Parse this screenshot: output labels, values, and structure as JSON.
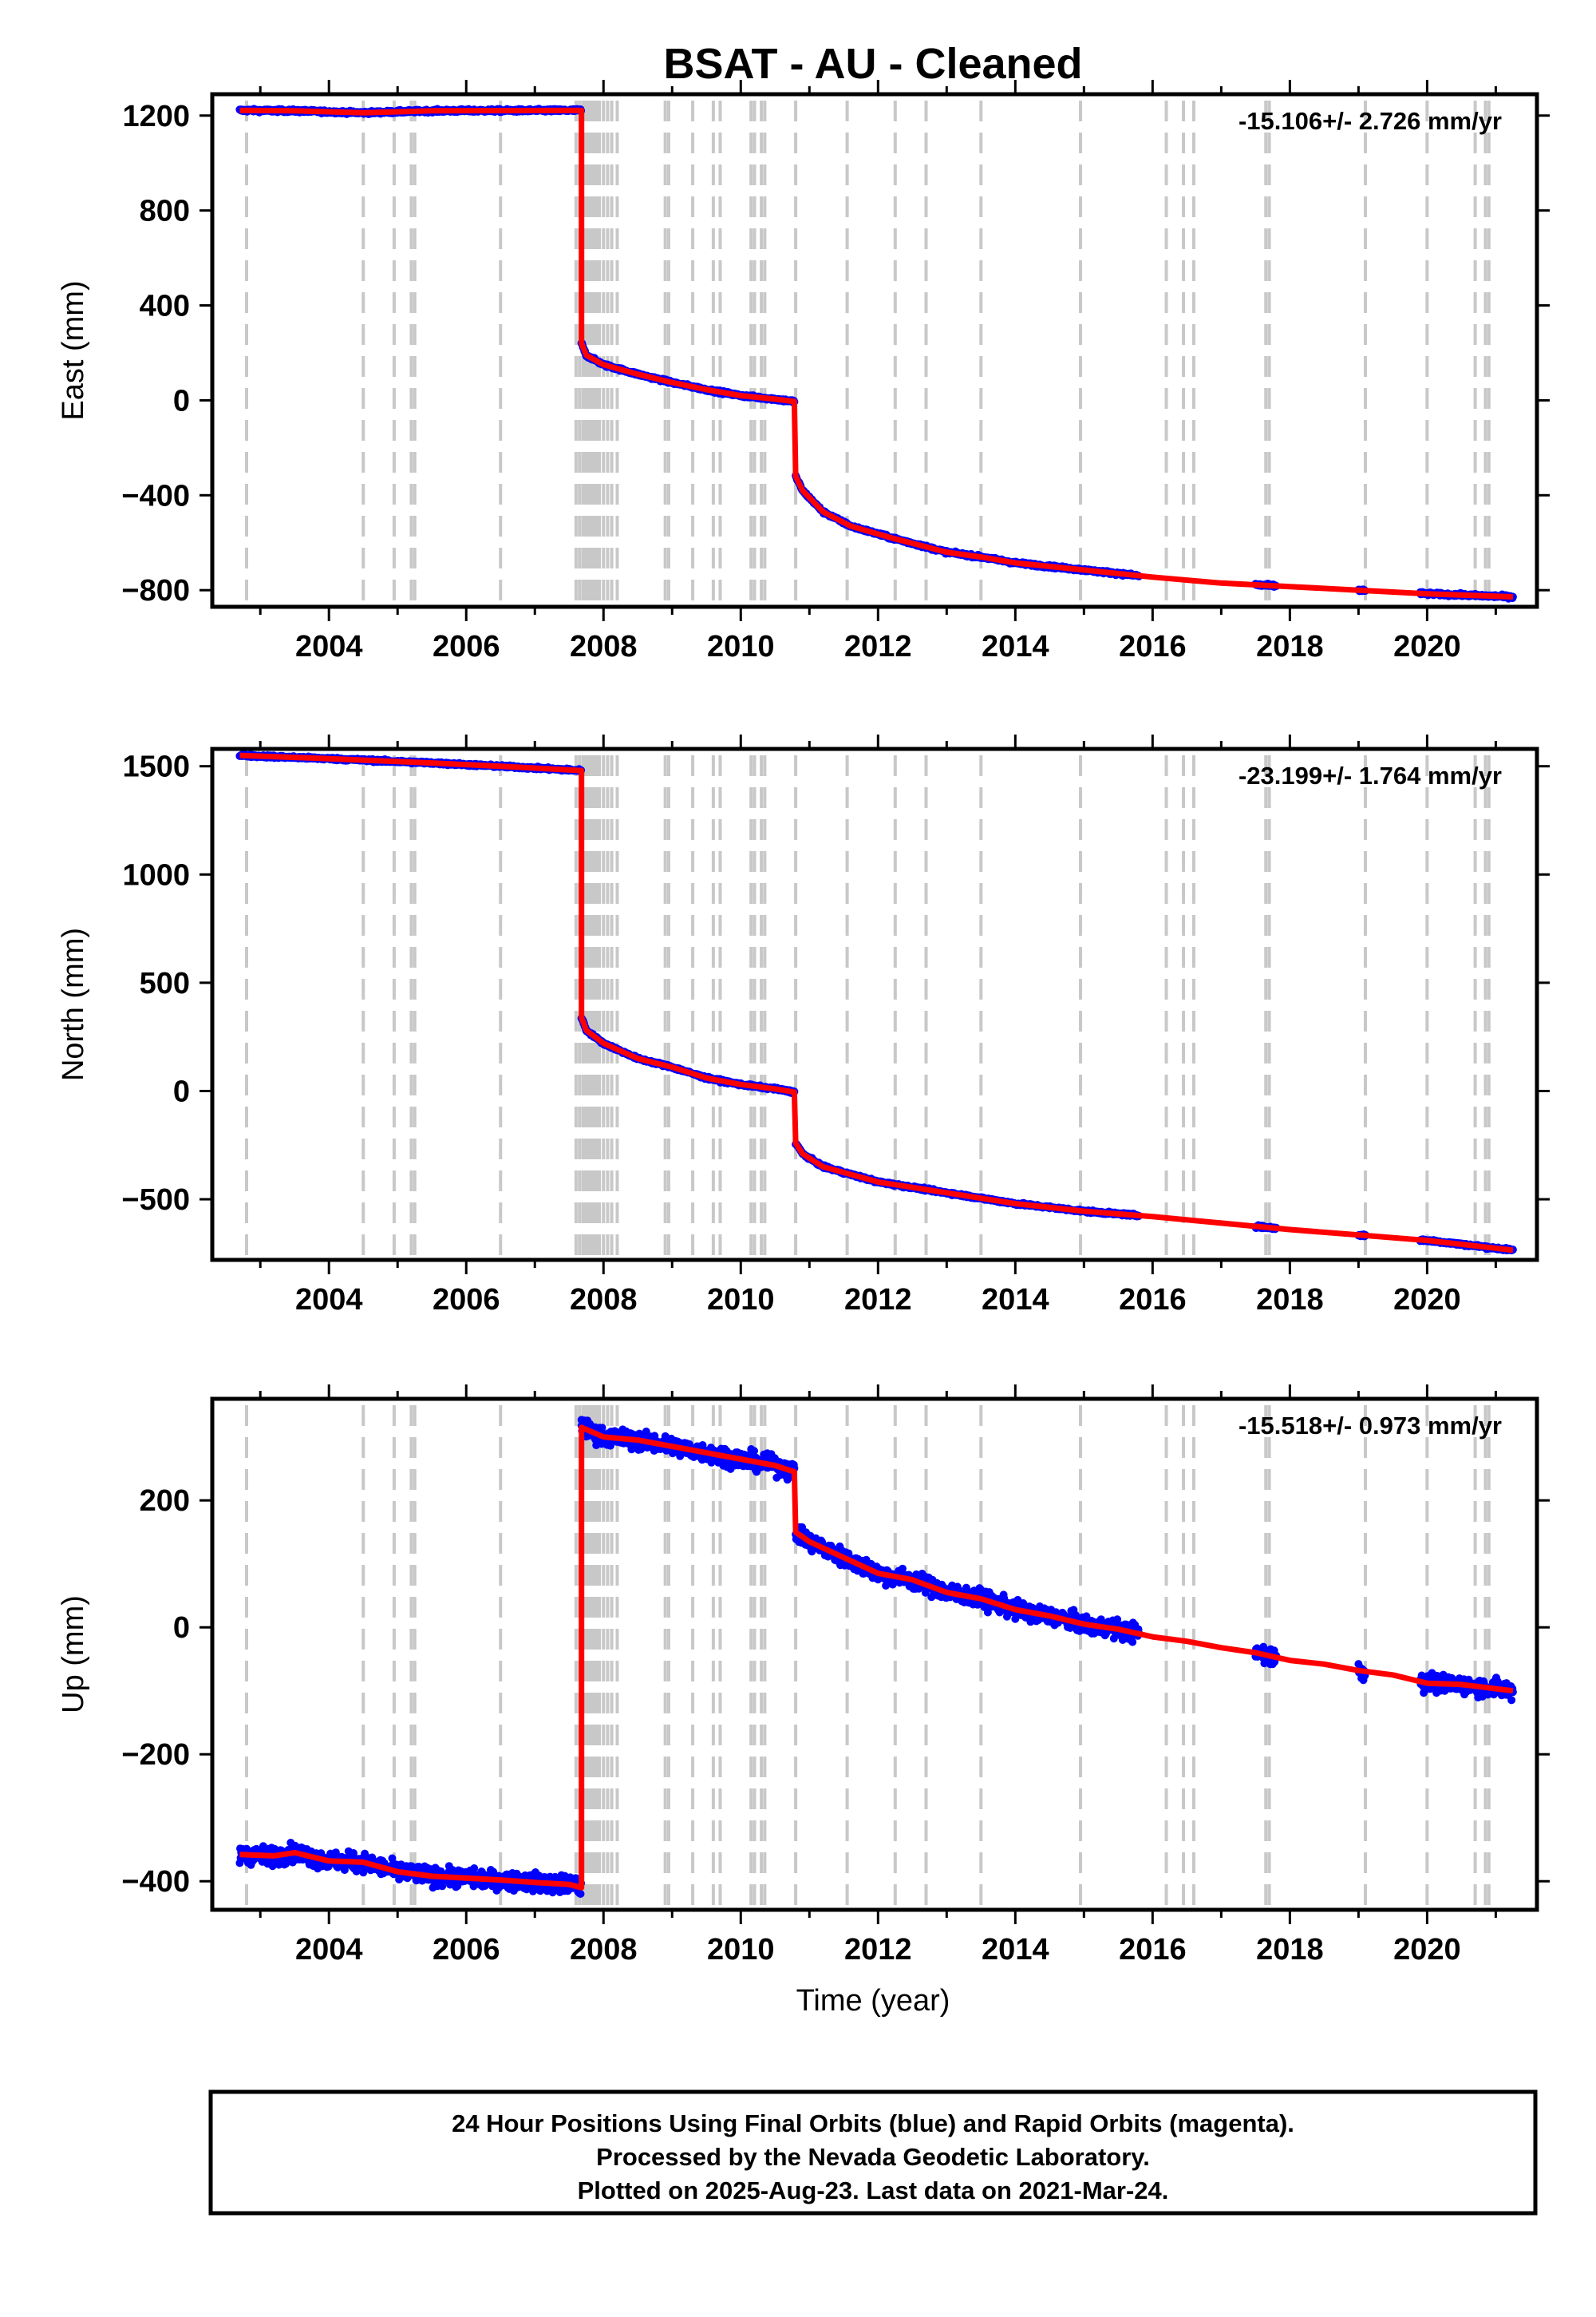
{
  "chart_data": {
    "title": "BSAT  - AU - Cleaned",
    "xlabel": "Time (year)",
    "xlim": [
      2002.3,
      2021.6
    ],
    "xticks": [
      2004,
      2006,
      2008,
      2010,
      2012,
      2014,
      2016,
      2018,
      2020
    ],
    "colors": {
      "data": "#0000ff",
      "model": "#ff0000",
      "event": "#c8c8c8"
    },
    "event_lines": [
      2002.8,
      2004.5,
      2004.95,
      2005.2,
      2005.25,
      2006.5,
      2007.6,
      2007.65,
      2007.7,
      2007.72,
      2007.75,
      2007.78,
      2007.8,
      2007.83,
      2007.86,
      2007.9,
      2007.94,
      2008.0,
      2008.06,
      2008.12,
      2008.2,
      2008.9,
      2008.95,
      2009.3,
      2009.6,
      2009.7,
      2010.15,
      2010.2,
      2010.3,
      2010.35,
      2010.8,
      2011.55,
      2012.25,
      2012.7,
      2013.5,
      2014.95,
      2016.2,
      2016.45,
      2016.6,
      2017.65,
      2017.7,
      2019.1,
      2020.0,
      2020.7,
      2020.85,
      2020.9
    ],
    "panels": [
      {
        "type": "scatter",
        "ylabel": "East (mm)",
        "ylim": [
          -870,
          1290
        ],
        "yticks": [
          -800,
          -400,
          0,
          400,
          800,
          1200
        ],
        "rate_text": "-15.106+/- 2.726 mm/yr",
        "noise": 6,
        "model": [
          [
            2002.7,
            1222
          ],
          [
            2003.5,
            1220
          ],
          [
            2004.5,
            1212
          ],
          [
            2005.5,
            1220
          ],
          [
            2006.5,
            1221
          ],
          [
            2007.68,
            1222
          ],
          [
            2007.68,
            240
          ],
          [
            2007.75,
            190
          ],
          [
            2008.0,
            150
          ],
          [
            2008.5,
            110
          ],
          [
            2009.0,
            75
          ],
          [
            2009.5,
            45
          ],
          [
            2010.0,
            20
          ],
          [
            2010.5,
            5
          ],
          [
            2010.78,
            -5
          ],
          [
            2010.8,
            -320
          ],
          [
            2010.9,
            -380
          ],
          [
            2011.2,
            -470
          ],
          [
            2011.6,
            -530
          ],
          [
            2012.2,
            -580
          ],
          [
            2013.0,
            -640
          ],
          [
            2013.5,
            -660
          ],
          [
            2014.0,
            -685
          ],
          [
            2015.0,
            -715
          ],
          [
            2016.0,
            -745
          ],
          [
            2017.0,
            -770
          ],
          [
            2018.0,
            -785
          ],
          [
            2019.0,
            -800
          ],
          [
            2020.0,
            -815
          ],
          [
            2021.25,
            -828
          ]
        ],
        "data_ranges": [
          [
            2002.7,
            2007.68
          ],
          [
            2007.68,
            2010.78
          ],
          [
            2010.8,
            2015.8
          ],
          [
            2017.5,
            2017.8
          ],
          [
            2019.0,
            2019.1
          ],
          [
            2019.9,
            2021.25
          ]
        ]
      },
      {
        "type": "scatter",
        "ylabel": "North (mm)",
        "ylim": [
          -780,
          1580
        ],
        "yticks": [
          -500,
          0,
          500,
          1000,
          1500
        ],
        "rate_text": "-23.199+/- 1.764 mm/yr",
        "noise": 6,
        "model": [
          [
            2002.7,
            1550
          ],
          [
            2004.0,
            1535
          ],
          [
            2005.5,
            1515
          ],
          [
            2006.5,
            1500
          ],
          [
            2007.68,
            1480
          ],
          [
            2007.68,
            340
          ],
          [
            2007.75,
            280
          ],
          [
            2008.0,
            220
          ],
          [
            2008.5,
            150
          ],
          [
            2009.0,
            110
          ],
          [
            2009.5,
            60
          ],
          [
            2010.0,
            30
          ],
          [
            2010.5,
            10
          ],
          [
            2010.78,
            -5
          ],
          [
            2010.8,
            -240
          ],
          [
            2010.9,
            -290
          ],
          [
            2011.2,
            -350
          ],
          [
            2012.0,
            -420
          ],
          [
            2013.0,
            -470
          ],
          [
            2014.0,
            -520
          ],
          [
            2015.0,
            -555
          ],
          [
            2016.0,
            -580
          ],
          [
            2017.0,
            -610
          ],
          [
            2018.0,
            -640
          ],
          [
            2019.0,
            -665
          ],
          [
            2020.0,
            -690
          ],
          [
            2021.25,
            -735
          ]
        ],
        "data_ranges": [
          [
            2002.7,
            2007.68
          ],
          [
            2007.68,
            2010.78
          ],
          [
            2010.8,
            2015.8
          ],
          [
            2017.5,
            2017.8
          ],
          [
            2019.0,
            2019.1
          ],
          [
            2019.9,
            2021.25
          ]
        ]
      },
      {
        "type": "scatter",
        "ylabel": "Up (mm)",
        "ylim": [
          -445,
          360
        ],
        "yticks": [
          -400,
          -200,
          0,
          200
        ],
        "rate_text": "-15.518+/- 0.973 mm/yr",
        "noise": 14,
        "model": [
          [
            2002.7,
            -358
          ],
          [
            2003.2,
            -360
          ],
          [
            2003.5,
            -355
          ],
          [
            2004.0,
            -368
          ],
          [
            2004.5,
            -370
          ],
          [
            2005.0,
            -385
          ],
          [
            2005.5,
            -392
          ],
          [
            2006.0,
            -395
          ],
          [
            2006.5,
            -398
          ],
          [
            2007.0,
            -402
          ],
          [
            2007.5,
            -405
          ],
          [
            2007.68,
            -410
          ],
          [
            2007.68,
            315
          ],
          [
            2008.0,
            300
          ],
          [
            2008.5,
            295
          ],
          [
            2009.0,
            285
          ],
          [
            2009.5,
            275
          ],
          [
            2010.0,
            265
          ],
          [
            2010.5,
            255
          ],
          [
            2010.78,
            245
          ],
          [
            2010.8,
            150
          ],
          [
            2011.0,
            135
          ],
          [
            2011.5,
            110
          ],
          [
            2012.0,
            85
          ],
          [
            2012.5,
            75
          ],
          [
            2013.0,
            55
          ],
          [
            2013.5,
            45
          ],
          [
            2014.0,
            28
          ],
          [
            2014.5,
            18
          ],
          [
            2015.0,
            5
          ],
          [
            2015.5,
            -3
          ],
          [
            2016.0,
            -15
          ],
          [
            2016.5,
            -22
          ],
          [
            2017.0,
            -32
          ],
          [
            2017.5,
            -40
          ],
          [
            2018.0,
            -52
          ],
          [
            2018.5,
            -58
          ],
          [
            2019.0,
            -68
          ],
          [
            2019.5,
            -75
          ],
          [
            2020.0,
            -88
          ],
          [
            2020.5,
            -90
          ],
          [
            2021.25,
            -100
          ]
        ],
        "data_ranges": [
          [
            2002.7,
            2007.68
          ],
          [
            2007.68,
            2010.78
          ],
          [
            2010.8,
            2015.8
          ],
          [
            2017.5,
            2017.8
          ],
          [
            2019.0,
            2019.1
          ],
          [
            2019.9,
            2021.25
          ]
        ]
      }
    ]
  },
  "footer": {
    "line1": "24 Hour Positions Using Final Orbits (blue) and Rapid Orbits (magenta).",
    "line2": "Processed by the Nevada Geodetic Laboratory.",
    "line3": "Plotted on 2025-Aug-23. Last data on 2021-Mar-24."
  }
}
